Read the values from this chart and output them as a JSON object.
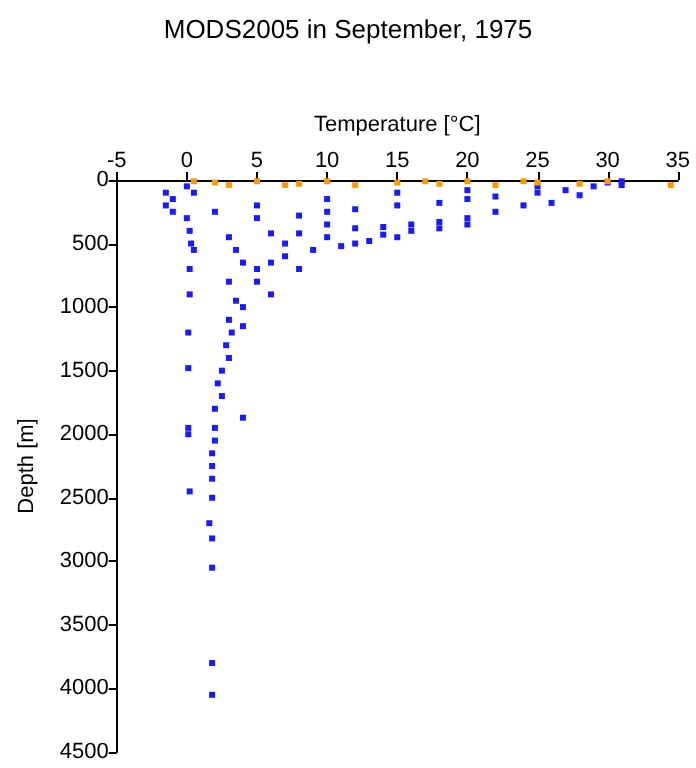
{
  "chart_data": {
    "type": "scatter",
    "title": "MODS2005 in September, 1975",
    "xlabel": "Temperature [°C]",
    "ylabel": "Depth [m]",
    "xlim": [
      -5,
      35
    ],
    "xticks": [
      -5,
      0,
      5,
      10,
      15,
      20,
      25,
      30,
      35
    ],
    "ylim": [
      4500,
      0
    ],
    "yticks": [
      0,
      500,
      1000,
      1500,
      2000,
      2500,
      3000,
      3500,
      4000,
      4500
    ],
    "grid": false,
    "marker": "square",
    "series": [
      {
        "color": "#1a1aff",
        "x": [
          -1.5,
          -1.5,
          -1,
          0,
          0,
          2,
          5,
          8,
          10,
          12,
          15,
          18,
          20,
          22,
          25,
          27,
          29,
          30,
          31,
          31,
          28,
          26,
          24,
          22,
          20,
          18,
          16,
          14,
          12,
          10,
          5,
          10,
          15,
          20,
          25,
          -1,
          0.5,
          0.2,
          0.3,
          0.5,
          0.2,
          0.2,
          0.1,
          0.1,
          0.1,
          0.1,
          0.2,
          3,
          3.5,
          4,
          5,
          3,
          3.5,
          4,
          3,
          3.2,
          2.8,
          3,
          2.5,
          2.2,
          2.5,
          2,
          4,
          2,
          2,
          1.8,
          1.8,
          1.8,
          1.8,
          1.6,
          1.8,
          1.8,
          1.8,
          1.8,
          6,
          8,
          10,
          12,
          14,
          16,
          18,
          20,
          7,
          9,
          11,
          8,
          6,
          13,
          5,
          6,
          4,
          15,
          7
        ],
        "values": [
          100,
          200,
          250,
          50,
          300,
          250,
          300,
          280,
          250,
          230,
          200,
          180,
          150,
          130,
          100,
          80,
          50,
          20,
          10,
          40,
          120,
          180,
          200,
          250,
          300,
          330,
          350,
          370,
          380,
          350,
          200,
          150,
          100,
          80,
          50,
          150,
          100,
          400,
          500,
          550,
          700,
          900,
          1200,
          1480,
          1950,
          2000,
          2450,
          450,
          550,
          650,
          700,
          800,
          950,
          1000,
          1100,
          1200,
          1300,
          1400,
          1500,
          1600,
          1700,
          1800,
          1870,
          1950,
          2050,
          2150,
          2250,
          2350,
          2500,
          2700,
          2820,
          3050,
          3800,
          4050,
          420,
          420,
          450,
          500,
          430,
          400,
          380,
          350,
          600,
          550,
          520,
          700,
          650,
          480,
          800,
          900,
          1150,
          450,
          500
        ]
      },
      {
        "color": "#ff9900",
        "x": [
          0.5,
          2,
          5,
          8,
          10,
          12,
          15,
          18,
          20,
          22,
          25,
          28,
          30,
          3,
          7,
          17,
          24,
          34.5
        ],
        "values": [
          10,
          20,
          10,
          30,
          10,
          40,
          20,
          30,
          10,
          40,
          20,
          30,
          10,
          40,
          40,
          10,
          10,
          40
        ]
      }
    ]
  }
}
